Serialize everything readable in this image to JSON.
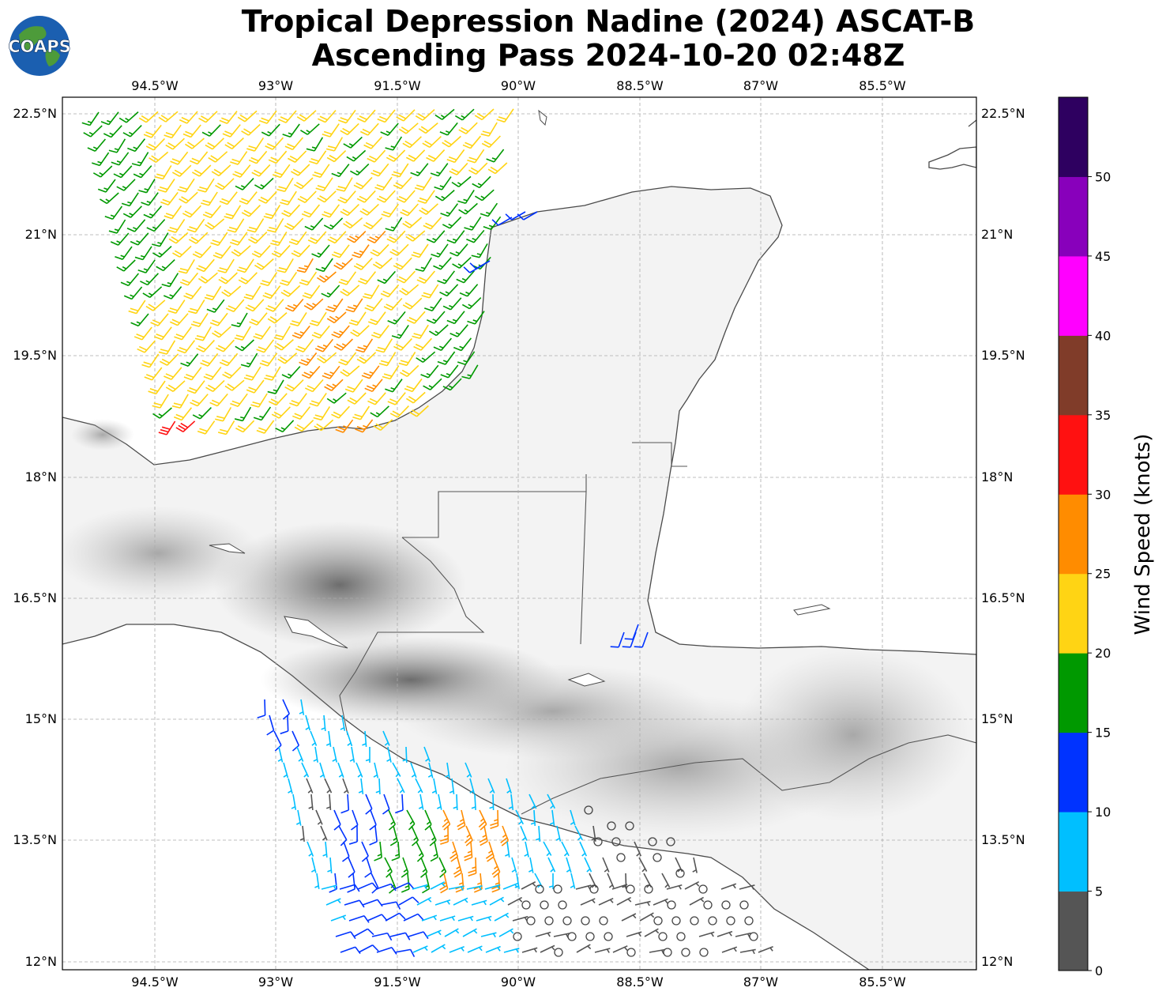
{
  "title": {
    "line1": "Tropical Depression Nadine (2024) ASCAT-B",
    "line2": "Ascending Pass 2024-10-20 02:48Z"
  },
  "logo": {
    "text": "COAPS"
  },
  "map": {
    "lon_labels": [
      "94.5°W",
      "93°W",
      "91.5°W",
      "90°W",
      "88.5°W",
      "87°W",
      "85.5°W"
    ],
    "lat_labels": [
      "22.5°N",
      "21°N",
      "19.5°N",
      "18°N",
      "16.5°N",
      "15°N",
      "13.5°N",
      "12°N"
    ],
    "lon_range": [
      -95.7,
      -84.35
    ],
    "lat_range": [
      11.9,
      22.7
    ],
    "gridlines": true
  },
  "colorbar": {
    "label": "Wind Speed (knots)",
    "ticks": [
      "0",
      "5",
      "10",
      "15",
      "20",
      "25",
      "30",
      "35",
      "40",
      "45",
      "50"
    ],
    "bins": [
      {
        "min": 0,
        "max": 5,
        "color": "#555555"
      },
      {
        "min": 5,
        "max": 10,
        "color": "#00bfff"
      },
      {
        "min": 10,
        "max": 15,
        "color": "#0033ff"
      },
      {
        "min": 15,
        "max": 20,
        "color": "#009900"
      },
      {
        "min": 20,
        "max": 25,
        "color": "#ffd414"
      },
      {
        "min": 25,
        "max": 30,
        "color": "#ff8c00"
      },
      {
        "min": 30,
        "max": 35,
        "color": "#ff1111"
      },
      {
        "min": 35,
        "max": 40,
        "color": "#803c29"
      },
      {
        "min": 40,
        "max": 45,
        "color": "#ff00ff"
      },
      {
        "min": 45,
        "max": 50,
        "color": "#8800bb"
      },
      {
        "min": 50,
        "max": 55,
        "color": "#2e0060"
      }
    ]
  }
}
